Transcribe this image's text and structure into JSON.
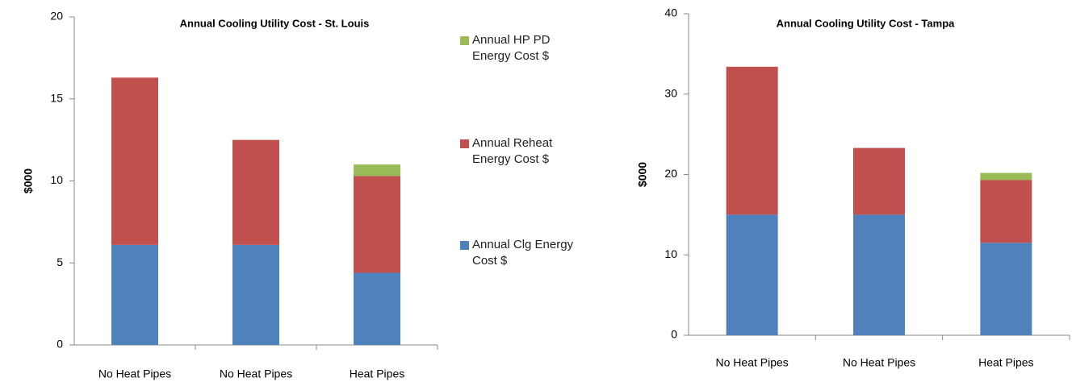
{
  "chart_data": [
    {
      "type": "stacked_bar",
      "title": "Annual Cooling Utility Cost - St. Louis",
      "y_label": "$000",
      "categories": [
        "No Heat Pipes",
        "No Heat Pipes",
        "Heat Pipes"
      ],
      "series": [
        {
          "name": "Annual Clg Energy Cost $",
          "color": "#4f81bd",
          "values": [
            6.1,
            6.1,
            4.4
          ]
        },
        {
          "name": "Annual Reheat Energy Cost $",
          "color": "#c0504d",
          "values": [
            10.2,
            6.4,
            5.9
          ]
        },
        {
          "name": "Annual HP PD Energy Cost $",
          "color": "#9bbb59",
          "values": [
            0,
            0,
            0.7
          ]
        }
      ],
      "ylim": [
        0,
        20
      ],
      "yticks": [
        0,
        5,
        10,
        15,
        20
      ],
      "grid": false,
      "legend": "right"
    },
    {
      "type": "stacked_bar",
      "title": "Annual Cooling Utility Cost - Tampa",
      "y_label": "$000",
      "categories": [
        "No Heat Pipes",
        "No Heat Pipes",
        "Heat Pipes"
      ],
      "series": [
        {
          "color": "#4f81bd",
          "values": [
            15.0,
            15.0,
            11.5
          ]
        },
        {
          "color": "#c0504d",
          "values": [
            18.4,
            8.3,
            7.8
          ]
        },
        {
          "color": "#9bbb59",
          "values": [
            0,
            0,
            0.9
          ]
        }
      ],
      "ylim": [
        0,
        40
      ],
      "yticks": [
        0,
        10,
        20,
        30,
        40
      ],
      "grid": false
    }
  ]
}
